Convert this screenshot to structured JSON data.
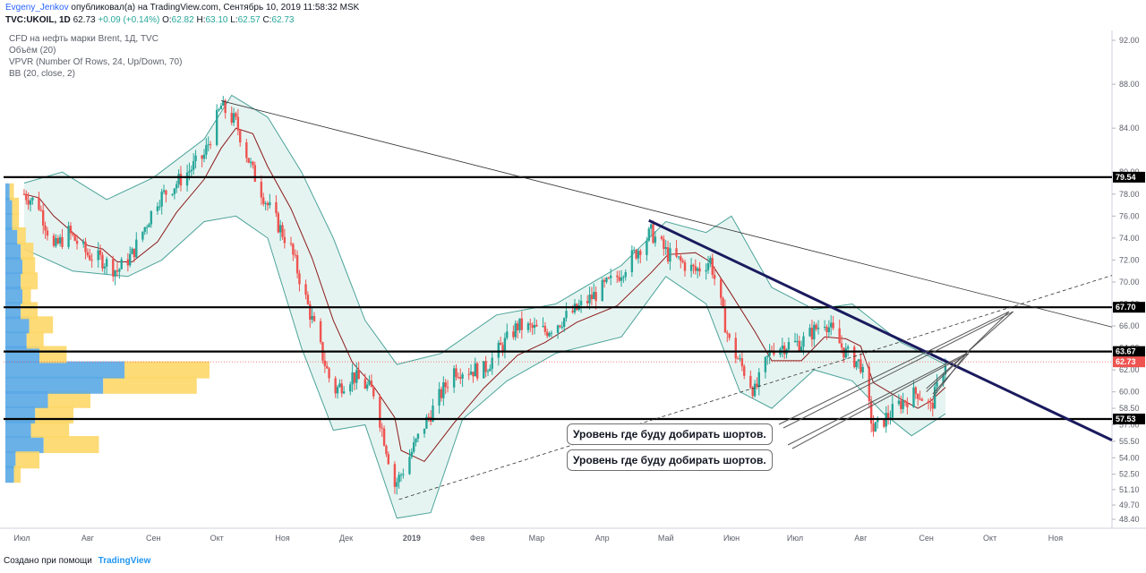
{
  "header": {
    "author": "Evgeny_Jenkov",
    "published": "опубликовал(а) на TradingView.com, Сентябрь 10, 2019 11:58:32 MSK",
    "symbol": "TVC:UKOIL, 1D",
    "last": "62.73",
    "change": "+0.09 (+0.14%)",
    "o_label": "O:",
    "o": "62.82",
    "h_label": "H:",
    "h": "63.10",
    "l_label": "L:",
    "l": "62.57",
    "c_label": "C:",
    "c": "62.73"
  },
  "legend": {
    "title": "CFD на нефть марки Brent, 1Д, TVC",
    "volume": "Объём (20)",
    "vpvr": "VPVR (Number Of Rows, 24, Up/Down, 70)",
    "bb": "BB (20, close, 2)"
  },
  "footer": {
    "created": "Создано при помощи",
    "brand": "TradingView"
  },
  "callouts": [
    "Уровень где буду добирать шортов.",
    "Уровень где буду добирать шортов."
  ],
  "colors": {
    "up": "#26a69a",
    "down": "#ef5350",
    "bb_fill": "#e6f4f1",
    "bb_band": "#4ba39a",
    "bb_mid": "#8b1a1a",
    "vp_up": "#5aa9e6",
    "vp_down": "#fdd768",
    "level": "#000000",
    "trend_bold": "#1a1a5e",
    "price_marker": "#ef5350"
  },
  "chart_data": {
    "type": "candlestick",
    "symbol": "TVC:UKOIL",
    "ylim": [
      46.5,
      93.5
    ],
    "y_ticks": [
      "92.00",
      "88.00",
      "84.00",
      "80.00",
      "78.00",
      "76.00",
      "74.00",
      "72.00",
      "70.00",
      "68.00",
      "66.00",
      "64.00",
      "62.00",
      "60.00",
      "58.50",
      "57.00",
      "55.50",
      "54.00",
      "52.50",
      "51.10",
      "49.70",
      "48.40"
    ],
    "x_labels": [
      "Июл",
      "Авг",
      "Сен",
      "Окт",
      "Ноя",
      "Дек",
      "2019",
      "Фев",
      "Мар",
      "Апр",
      "Май",
      "Июн",
      "Июл",
      "Авг",
      "Сен",
      "Окт",
      "Ноя"
    ],
    "horizontal_levels": [
      "79.54",
      "67.70",
      "63.67",
      "57.53"
    ],
    "current_price": "62.73",
    "close_path": [
      [
        "2018-07-02",
        78.0
      ],
      [
        "2018-07-09",
        77.0
      ],
      [
        "2018-07-16",
        73.0
      ],
      [
        "2018-07-23",
        74.5
      ],
      [
        "2018-08-01",
        72.5
      ],
      [
        "2018-08-08",
        72.0
      ],
      [
        "2018-08-15",
        71.0
      ],
      [
        "2018-08-22",
        72.5
      ],
      [
        "2018-09-03",
        77.5
      ],
      [
        "2018-09-12",
        79.0
      ],
      [
        "2018-09-25",
        81.5
      ],
      [
        "2018-10-03",
        86.0
      ],
      [
        "2018-10-10",
        84.5
      ],
      [
        "2018-10-18",
        80.0
      ],
      [
        "2018-10-25",
        77.0
      ],
      [
        "2018-11-05",
        73.0
      ],
      [
        "2018-11-15",
        66.5
      ],
      [
        "2018-11-25",
        60.0
      ],
      [
        "2018-12-04",
        61.5
      ],
      [
        "2018-12-14",
        60.0
      ],
      [
        "2018-12-24",
        51.5
      ],
      [
        "2018-12-27",
        52.5
      ],
      [
        "2019-01-07",
        57.0
      ],
      [
        "2019-01-21",
        62.0
      ],
      [
        "2019-02-04",
        62.0
      ],
      [
        "2019-02-20",
        66.0
      ],
      [
        "2019-03-05",
        65.5
      ],
      [
        "2019-03-20",
        67.5
      ],
      [
        "2019-04-08",
        70.5
      ],
      [
        "2019-04-24",
        74.5
      ],
      [
        "2019-05-02",
        72.5
      ],
      [
        "2019-05-15",
        71.0
      ],
      [
        "2019-05-22",
        72.0
      ],
      [
        "2019-05-31",
        64.5
      ],
      [
        "2019-06-12",
        60.0
      ],
      [
        "2019-06-20",
        64.0
      ],
      [
        "2019-07-04",
        64.5
      ],
      [
        "2019-07-15",
        66.5
      ],
      [
        "2019-07-25",
        63.5
      ],
      [
        "2019-08-01",
        62.5
      ],
      [
        "2019-08-07",
        56.5
      ],
      [
        "2019-08-20",
        59.0
      ],
      [
        "2019-08-28",
        60.0
      ],
      [
        "2019-09-03",
        58.5
      ],
      [
        "2019-09-10",
        62.73
      ]
    ],
    "bb_upper_path": [
      [
        "2018-07-02",
        79.0
      ],
      [
        "2018-07-20",
        80.0
      ],
      [
        "2018-08-10",
        77.5
      ],
      [
        "2018-09-01",
        79.5
      ],
      [
        "2018-09-25",
        83.0
      ],
      [
        "2018-10-08",
        87.0
      ],
      [
        "2018-10-25",
        85.0
      ],
      [
        "2018-11-10",
        80.0
      ],
      [
        "2018-11-25",
        74.0
      ],
      [
        "2018-12-10",
        66.5
      ],
      [
        "2018-12-25",
        62.5
      ],
      [
        "2019-01-15",
        63.5
      ],
      [
        "2019-02-10",
        67.0
      ],
      [
        "2019-03-10",
        68.0
      ],
      [
        "2019-04-10",
        71.5
      ],
      [
        "2019-05-01",
        75.5
      ],
      [
        "2019-05-20",
        74.5
      ],
      [
        "2019-06-01",
        76.0
      ],
      [
        "2019-06-20",
        69.5
      ],
      [
        "2019-07-10",
        67.5
      ],
      [
        "2019-07-28",
        68.0
      ],
      [
        "2019-08-20",
        64.5
      ],
      [
        "2019-09-10",
        62.5
      ]
    ],
    "bb_lower_path": [
      [
        "2018-07-02",
        73.0
      ],
      [
        "2018-07-25",
        71.0
      ],
      [
        "2018-08-20",
        70.5
      ],
      [
        "2018-09-05",
        72.0
      ],
      [
        "2018-09-25",
        75.5
      ],
      [
        "2018-10-10",
        76.0
      ],
      [
        "2018-10-25",
        74.0
      ],
      [
        "2018-11-10",
        64.0
      ],
      [
        "2018-11-25",
        56.5
      ],
      [
        "2018-12-10",
        57.0
      ],
      [
        "2018-12-25",
        48.5
      ],
      [
        "2019-01-10",
        49.0
      ],
      [
        "2019-01-25",
        57.5
      ],
      [
        "2019-02-15",
        61.0
      ],
      [
        "2019-03-10",
        63.5
      ],
      [
        "2019-04-10",
        65.0
      ],
      [
        "2019-05-01",
        70.5
      ],
      [
        "2019-05-20",
        68.0
      ],
      [
        "2019-06-05",
        60.0
      ],
      [
        "2019-06-20",
        58.5
      ],
      [
        "2019-07-10",
        62.0
      ],
      [
        "2019-07-28",
        61.0
      ],
      [
        "2019-08-12",
        58.0
      ],
      [
        "2019-08-25",
        56.0
      ],
      [
        "2019-09-10",
        58.0
      ]
    ],
    "volume_profile": [
      {
        "price": 55.2,
        "up": 0.45,
        "down": 0.65
      },
      {
        "price": 56.6,
        "up": 0.3,
        "down": 0.45
      },
      {
        "price": 57.9,
        "up": 0.35,
        "down": 0.45
      },
      {
        "price": 59.3,
        "up": 0.5,
        "down": 0.5
      },
      {
        "price": 60.6,
        "up": 1.15,
        "down": 1.1
      },
      {
        "price": 62.0,
        "up": 1.4,
        "down": 1.0
      },
      {
        "price": 63.4,
        "up": 0.4,
        "down": 0.32
      },
      {
        "price": 64.7,
        "up": 0.25,
        "down": 0.2
      },
      {
        "price": 66.1,
        "up": 0.28,
        "down": 0.28
      },
      {
        "price": 67.4,
        "up": 0.18,
        "down": 0.2
      },
      {
        "price": 68.8,
        "up": 0.2,
        "down": 0.1
      },
      {
        "price": 70.1,
        "up": 0.18,
        "down": 0.2
      },
      {
        "price": 71.5,
        "up": 0.2,
        "down": 0.15
      },
      {
        "price": 72.8,
        "up": 0.18,
        "down": 0.15
      },
      {
        "price": 74.2,
        "up": 0.14,
        "down": 0.1
      },
      {
        "price": 75.5,
        "up": 0.08,
        "down": 0.08
      },
      {
        "price": 76.9,
        "up": 0.08,
        "down": 0.08
      },
      {
        "price": 78.2,
        "up": 0.05,
        "down": 0.05
      },
      {
        "price": 53.8,
        "up": 0.12,
        "down": 0.28
      },
      {
        "price": 52.5,
        "up": 0.1,
        "down": 0.08
      }
    ]
  }
}
